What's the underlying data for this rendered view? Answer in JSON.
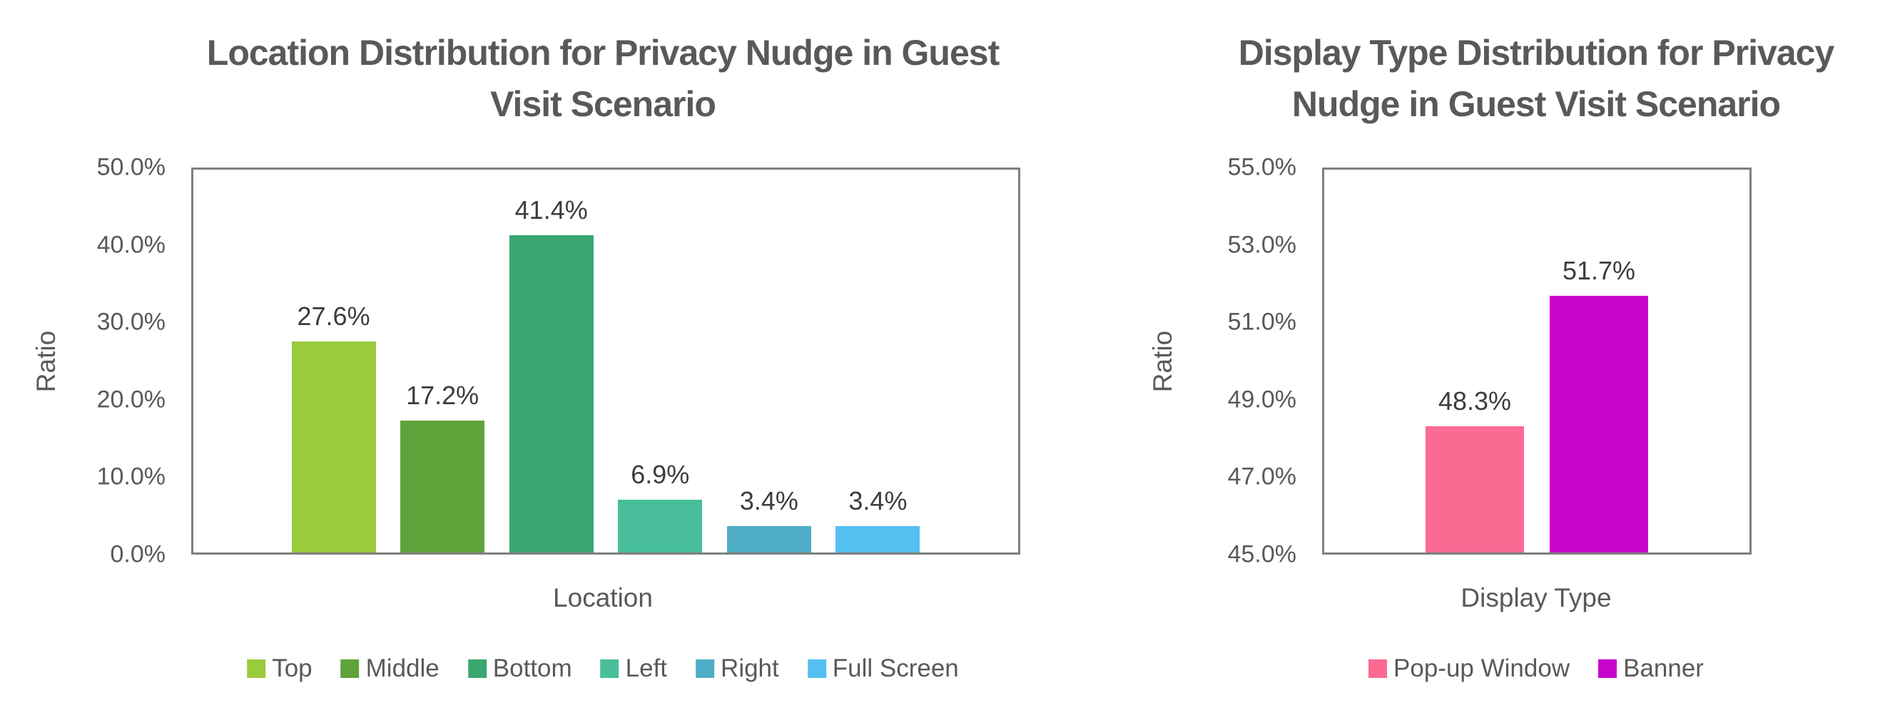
{
  "page": {
    "background": "#ffffff",
    "text_color": "#595959",
    "data_label_color": "#3c3c3c",
    "plot_border_color": "#7f7f7f"
  },
  "chart_data": [
    {
      "type": "bar",
      "title": "Location Distribution for Privacy Nudge in Guest Visit Scenario",
      "title_lines": [
        "Location Distribution for Privacy Nudge in Guest",
        "Visit Scenario"
      ],
      "xlabel": "Location",
      "ylabel": "Ratio",
      "categories": [
        "Top",
        "Middle",
        "Bottom",
        "Left",
        "Right",
        "Full Screen"
      ],
      "values": [
        27.6,
        17.2,
        41.4,
        6.9,
        3.4,
        3.4
      ],
      "labels": [
        "27.6%",
        "17.2%",
        "41.4%",
        "6.9%",
        "3.4%",
        "3.4%"
      ],
      "colors": [
        "#9BCB3C",
        "#5FA33B",
        "#39A76F",
        "#48BF9A",
        "#4FADC7",
        "#54C0F1"
      ],
      "ylim": [
        0,
        50
      ],
      "yticks_top_to_bottom": [
        "50.0%",
        "40.0%",
        "30.0%",
        "20.0%",
        "10.0%",
        "0.0%"
      ],
      "grid": false,
      "legend_position": "bottom"
    },
    {
      "type": "bar",
      "title": "Display Type Distribution for Privacy Nudge in Guest Visit Scenario",
      "title_lines": [
        "Display Type Distribution for Privacy",
        "Nudge in Guest Visit Scenario"
      ],
      "xlabel": "Display Type",
      "ylabel": "Ratio",
      "categories": [
        "Pop-up Window",
        "Banner"
      ],
      "values": [
        48.3,
        51.7
      ],
      "labels": [
        "48.3%",
        "51.7%"
      ],
      "colors": [
        "#FB6A92",
        "#C804CA"
      ],
      "ylim": [
        45,
        55
      ],
      "yticks_top_to_bottom": [
        "55.0%",
        "53.0%",
        "51.0%",
        "49.0%",
        "47.0%",
        "45.0%"
      ],
      "grid": false,
      "legend_position": "bottom"
    }
  ]
}
